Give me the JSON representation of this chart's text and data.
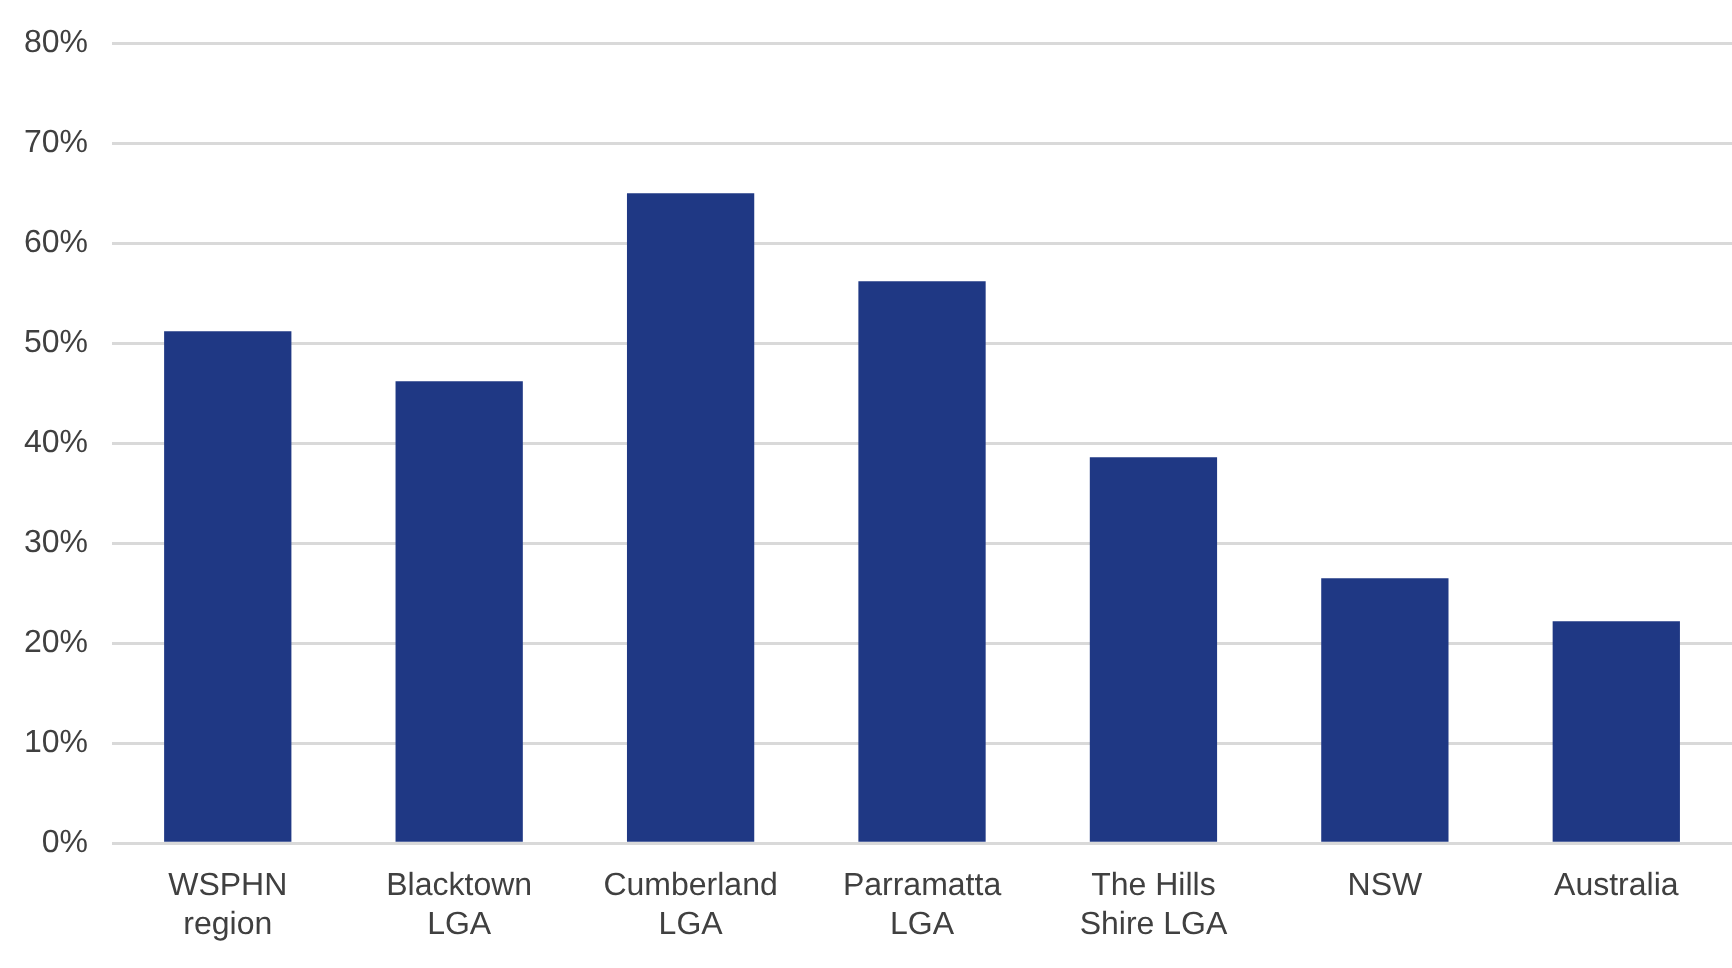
{
  "chart_data": {
    "type": "bar",
    "categories": [
      "WSPHN region",
      "Blacktown LGA",
      "Cumberland LGA",
      "Parramatta LGA",
      "The Hills Shire LGA",
      "NSW",
      "Australia"
    ],
    "values": [
      51.2,
      46.2,
      65.0,
      56.2,
      38.6,
      26.5,
      22.2
    ],
    "color": "#1f3884",
    "ylim": [
      0,
      80
    ],
    "yticks": [
      {
        "value": 0,
        "label": "0%"
      },
      {
        "value": 10,
        "label": "10%"
      },
      {
        "value": 20,
        "label": "20%"
      },
      {
        "value": 30,
        "label": "30%"
      },
      {
        "value": 40,
        "label": "40%"
      },
      {
        "value": 50,
        "label": "50%"
      },
      {
        "value": 60,
        "label": "60%"
      },
      {
        "value": 70,
        "label": "70%"
      },
      {
        "value": 80,
        "label": "80%"
      }
    ],
    "grid": "y",
    "legend": false
  }
}
